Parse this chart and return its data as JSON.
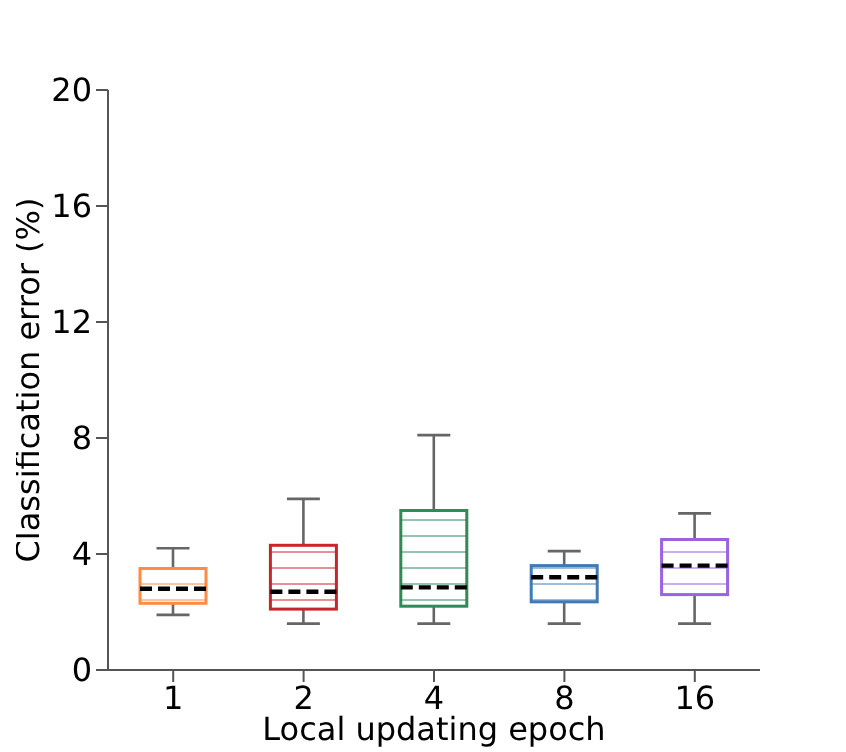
{
  "chart_data": {
    "type": "box",
    "xlabel": "Local updating epoch",
    "ylabel": "Classification error (%)",
    "categories": [
      "1",
      "2",
      "4",
      "8",
      "16"
    ],
    "boxes": [
      {
        "low": 1.9,
        "q1": 2.3,
        "median": 2.8,
        "q3": 3.5,
        "high": 4.2
      },
      {
        "low": 1.6,
        "q1": 2.1,
        "median": 2.7,
        "q3": 4.3,
        "high": 5.9
      },
      {
        "low": 1.6,
        "q1": 2.2,
        "median": 2.85,
        "q3": 5.5,
        "high": 8.1
      },
      {
        "low": 1.6,
        "q1": 2.35,
        "median": 3.2,
        "q3": 3.6,
        "high": 4.1
      },
      {
        "low": 1.6,
        "q1": 2.6,
        "median": 3.6,
        "q3": 4.5,
        "high": 5.4
      }
    ],
    "colors": [
      "#ff8c42",
      "#c8252b",
      "#2e8b57",
      "#3f7ab5",
      "#9a62e0"
    ],
    "ylim": [
      0,
      20
    ],
    "yticks": [
      0,
      4,
      8,
      12,
      16,
      20
    ],
    "grid": false
  }
}
